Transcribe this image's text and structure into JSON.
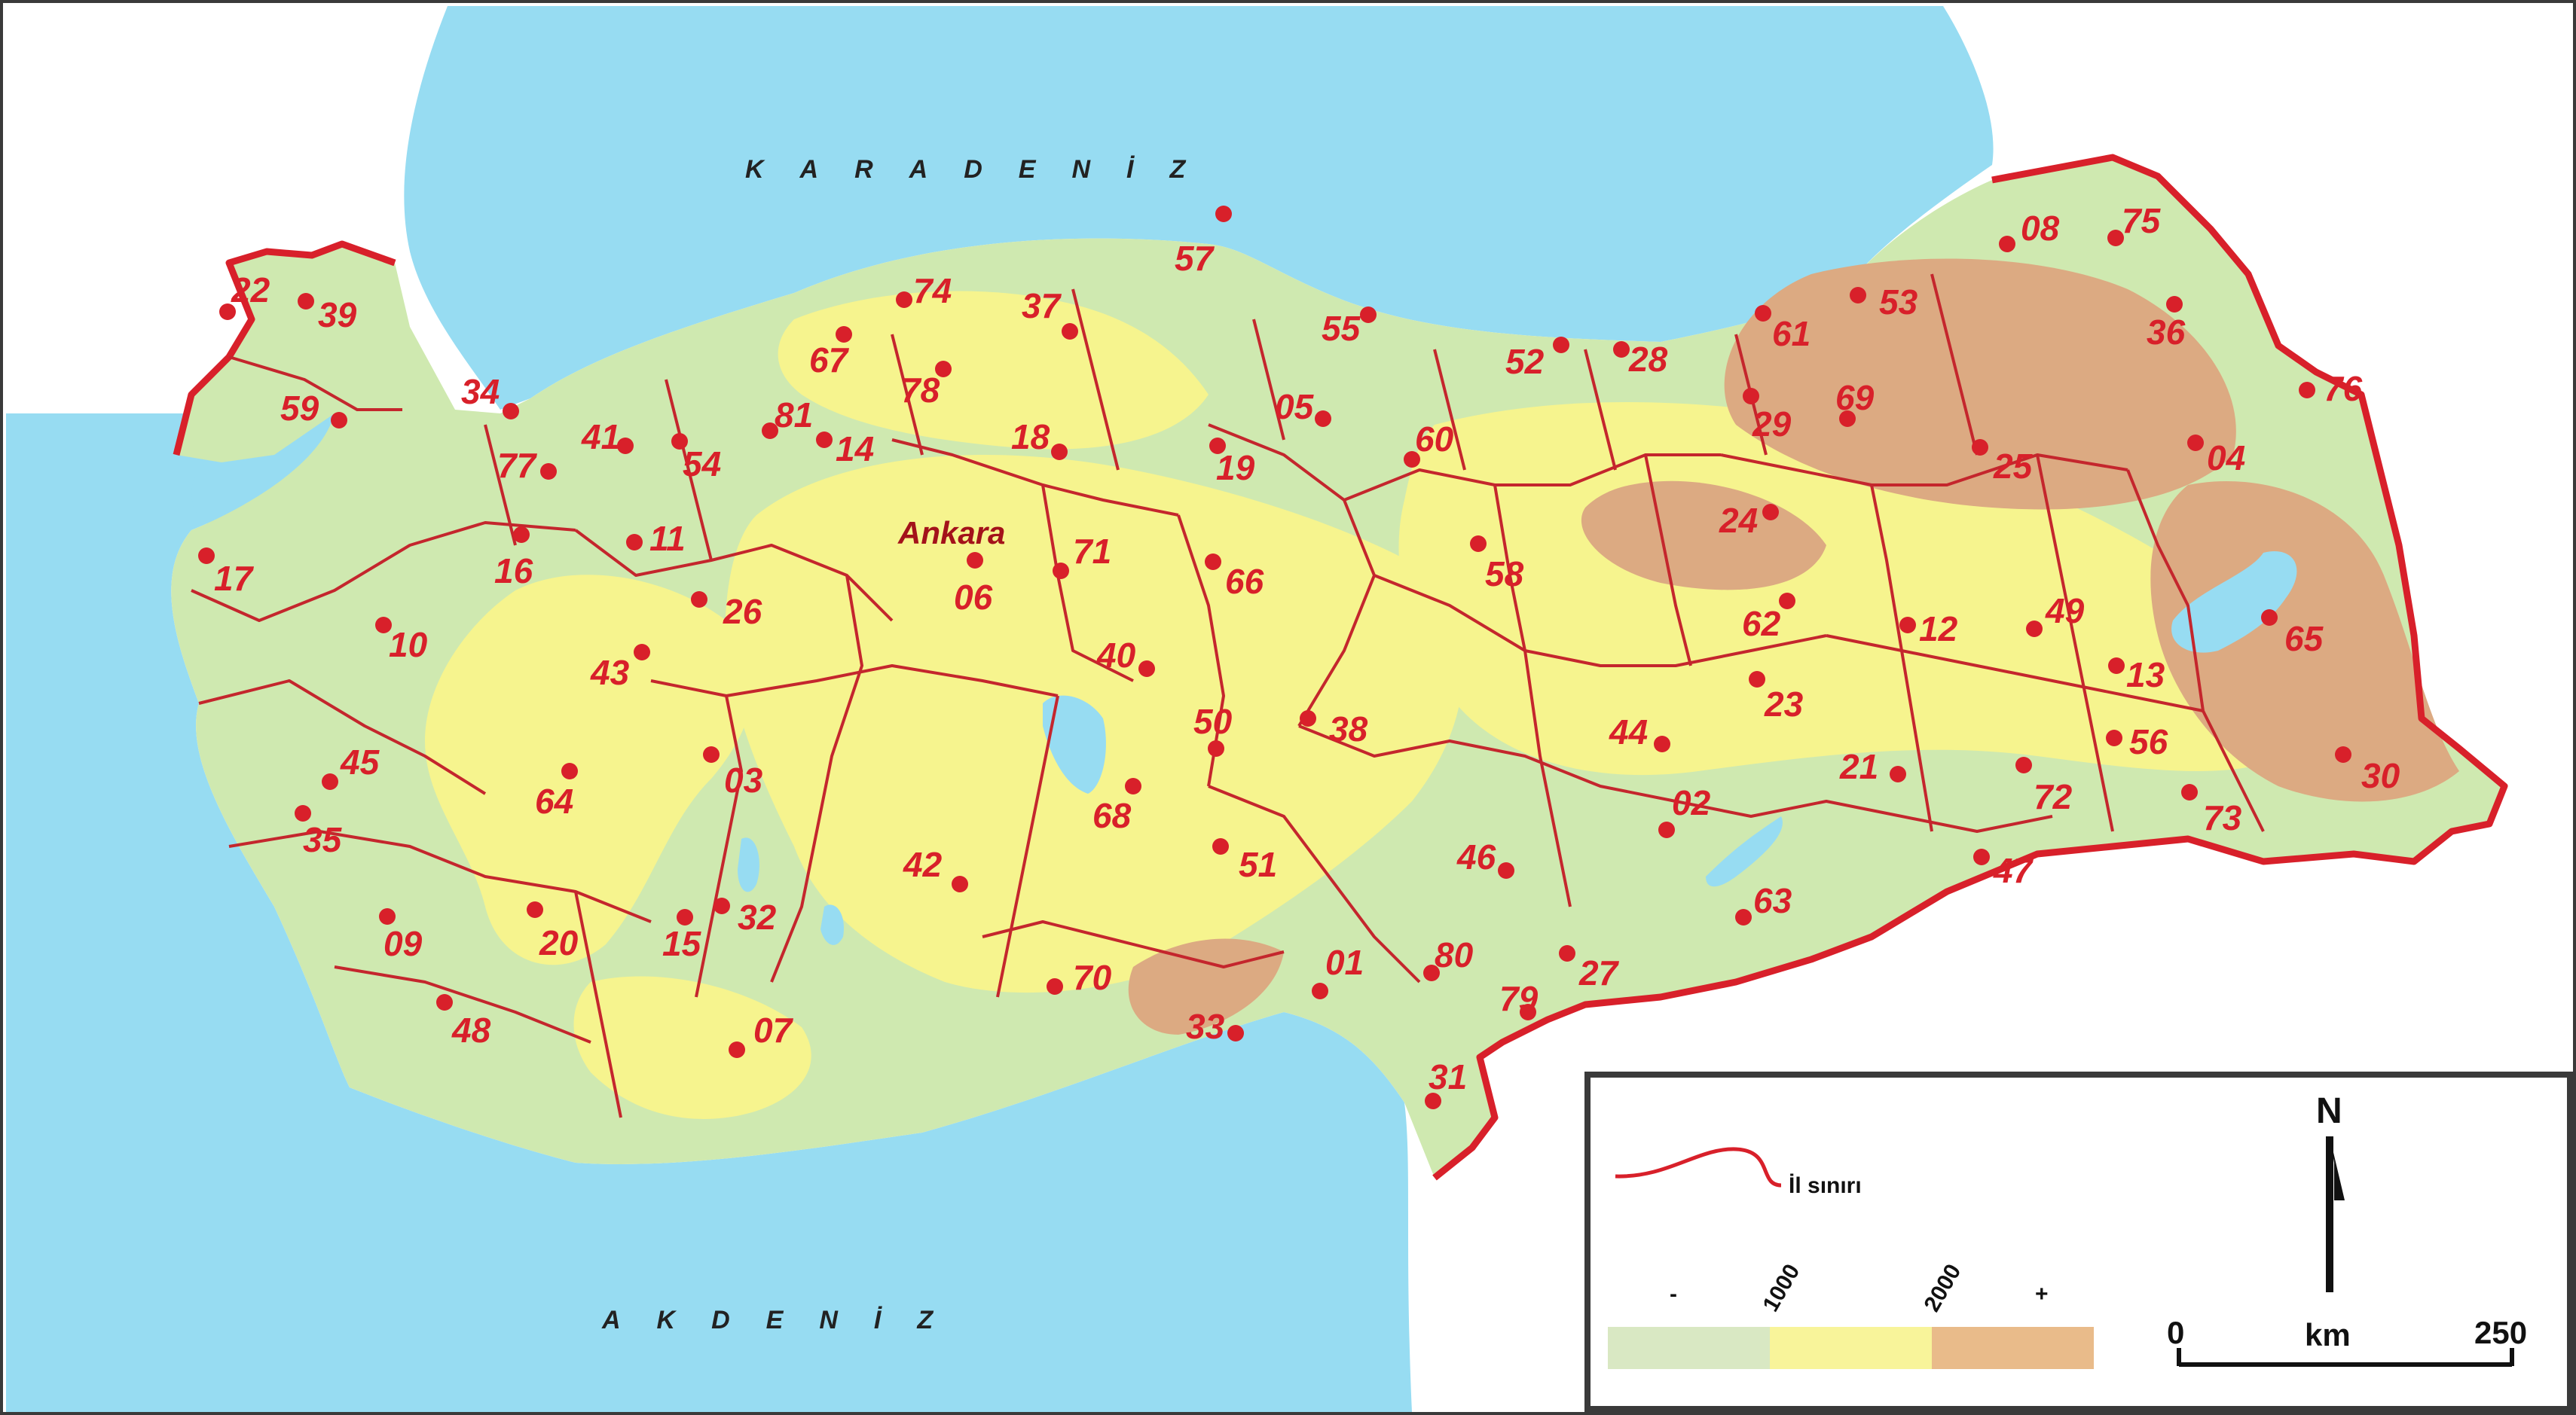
{
  "map": {
    "seas": {
      "north": "KARADENİZ",
      "south": "AKDENİZ"
    },
    "capital_label": "Ankara",
    "provinces": [
      {
        "code": "01",
        "label": "01"
      },
      {
        "code": "02",
        "label": "02"
      },
      {
        "code": "03",
        "label": "03"
      },
      {
        "code": "04",
        "label": "04"
      },
      {
        "code": "05",
        "label": "05"
      },
      {
        "code": "06",
        "label": "06"
      },
      {
        "code": "07",
        "label": "07"
      },
      {
        "code": "08",
        "label": "08"
      },
      {
        "code": "09",
        "label": "09"
      },
      {
        "code": "10",
        "label": "10"
      },
      {
        "code": "11",
        "label": "11"
      },
      {
        "code": "12",
        "label": "12"
      },
      {
        "code": "13",
        "label": "13"
      },
      {
        "code": "14",
        "label": "14"
      },
      {
        "code": "15",
        "label": "15"
      },
      {
        "code": "16",
        "label": "16"
      },
      {
        "code": "17",
        "label": "17"
      },
      {
        "code": "18",
        "label": "18"
      },
      {
        "code": "19",
        "label": "19"
      },
      {
        "code": "20",
        "label": "20"
      },
      {
        "code": "21",
        "label": "21"
      },
      {
        "code": "22",
        "label": "22"
      },
      {
        "code": "23",
        "label": "23"
      },
      {
        "code": "24",
        "label": "24"
      },
      {
        "code": "25",
        "label": "25"
      },
      {
        "code": "26",
        "label": "26"
      },
      {
        "code": "27",
        "label": "27"
      },
      {
        "code": "28",
        "label": "28"
      },
      {
        "code": "29",
        "label": "29"
      },
      {
        "code": "30",
        "label": "30"
      },
      {
        "code": "31",
        "label": "31"
      },
      {
        "code": "32",
        "label": "32"
      },
      {
        "code": "33",
        "label": "33"
      },
      {
        "code": "34",
        "label": "34"
      },
      {
        "code": "35",
        "label": "35"
      },
      {
        "code": "36",
        "label": "36"
      },
      {
        "code": "37",
        "label": "37"
      },
      {
        "code": "38",
        "label": "38"
      },
      {
        "code": "39",
        "label": "39"
      },
      {
        "code": "40",
        "label": "40"
      },
      {
        "code": "41",
        "label": "41"
      },
      {
        "code": "42",
        "label": "42"
      },
      {
        "code": "43",
        "label": "43"
      },
      {
        "code": "44",
        "label": "44"
      },
      {
        "code": "45",
        "label": "45"
      },
      {
        "code": "46",
        "label": "46"
      },
      {
        "code": "47",
        "label": "47"
      },
      {
        "code": "48",
        "label": "48"
      },
      {
        "code": "49",
        "label": "49"
      },
      {
        "code": "50",
        "label": "50"
      },
      {
        "code": "51",
        "label": "51"
      },
      {
        "code": "52",
        "label": "52"
      },
      {
        "code": "53",
        "label": "53"
      },
      {
        "code": "54",
        "label": "54"
      },
      {
        "code": "55",
        "label": "55"
      },
      {
        "code": "56",
        "label": "56"
      },
      {
        "code": "57",
        "label": "57"
      },
      {
        "code": "58",
        "label": "58"
      },
      {
        "code": "59",
        "label": "59"
      },
      {
        "code": "60",
        "label": "60"
      },
      {
        "code": "61",
        "label": "61"
      },
      {
        "code": "62",
        "label": "62"
      },
      {
        "code": "63",
        "label": "63"
      },
      {
        "code": "64",
        "label": "64"
      },
      {
        "code": "65",
        "label": "65"
      },
      {
        "code": "66",
        "label": "66"
      },
      {
        "code": "67",
        "label": "67"
      },
      {
        "code": "68",
        "label": "68"
      },
      {
        "code": "69",
        "label": "69"
      },
      {
        "code": "70",
        "label": "70"
      },
      {
        "code": "71",
        "label": "71"
      },
      {
        "code": "72",
        "label": "72"
      },
      {
        "code": "73",
        "label": "73"
      },
      {
        "code": "74",
        "label": "74"
      },
      {
        "code": "75",
        "label": "75"
      },
      {
        "code": "76",
        "label": "76"
      },
      {
        "code": "77",
        "label": "77"
      },
      {
        "code": "78",
        "label": "78"
      },
      {
        "code": "79",
        "label": "79"
      },
      {
        "code": "80",
        "label": "80"
      },
      {
        "code": "81",
        "label": "81"
      }
    ]
  },
  "legend": {
    "boundary_label": "İl sınırı",
    "elevation": {
      "minus_label": "-",
      "plus_label": "+",
      "threshold_1": "1000",
      "threshold_2": "2000",
      "colors": [
        "#d9e8c3",
        "#f8f49a",
        "#e9bb8a"
      ]
    },
    "north_label": "N",
    "scale": {
      "start": "0",
      "unit": "km",
      "end": "250"
    }
  },
  "colors": {
    "sea": "#97dcf2",
    "lowland": "#cfe9b0",
    "midland": "#f6f48e",
    "highland": "#dcaa82",
    "border": "#d8202a"
  }
}
